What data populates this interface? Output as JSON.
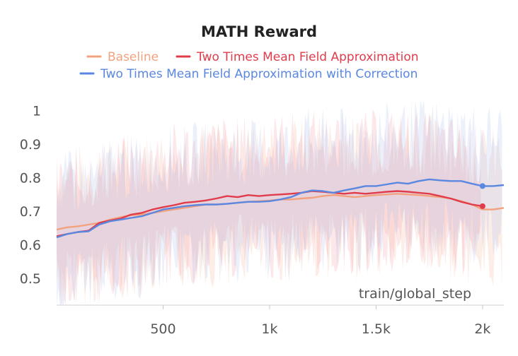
{
  "chart_data": {
    "type": "line",
    "title": "MATH Reward",
    "xlabel": "train/global_step",
    "ylabel": "",
    "xlim": [
      0,
      2100
    ],
    "ylim": [
      0.42,
      1.06
    ],
    "x_ticks": [
      500,
      1000,
      1500,
      2000
    ],
    "x_tick_labels": [
      "500",
      "1k",
      "1.5k",
      "2k"
    ],
    "y_ticks": [
      0.5,
      0.6,
      0.7,
      0.8,
      0.9,
      1.0
    ],
    "y_tick_labels": [
      "0.5",
      "0.6",
      "0.7",
      "0.8",
      "0.9",
      "1"
    ],
    "legend_position": "top-center",
    "grid": false,
    "series": [
      {
        "name": "Baseline",
        "color": "#F2A27E",
        "band_color": "#F5B8A0",
        "x": [
          0,
          50,
          100,
          150,
          200,
          250,
          300,
          350,
          400,
          450,
          500,
          550,
          600,
          650,
          700,
          750,
          800,
          850,
          900,
          950,
          1000,
          1050,
          1100,
          1150,
          1200,
          1250,
          1300,
          1350,
          1400,
          1450,
          1500,
          1550,
          1600,
          1650,
          1700,
          1750,
          1800,
          1850,
          1900,
          1950,
          2000,
          2050,
          2100
        ],
        "values": [
          0.645,
          0.652,
          0.655,
          0.66,
          0.665,
          0.675,
          0.682,
          0.688,
          0.69,
          0.695,
          0.7,
          0.705,
          0.71,
          0.715,
          0.72,
          0.72,
          0.722,
          0.725,
          0.728,
          0.73,
          0.732,
          0.735,
          0.735,
          0.738,
          0.74,
          0.745,
          0.748,
          0.745,
          0.742,
          0.745,
          0.748,
          0.75,
          0.752,
          0.75,
          0.748,
          0.745,
          0.742,
          0.738,
          0.73,
          0.72,
          0.705,
          0.705,
          0.71
        ]
      },
      {
        "name": "Two Times Mean Field Approximation",
        "color": "#E03C4B",
        "band_color": "#F2A0A8",
        "x": [
          0,
          50,
          100,
          150,
          200,
          250,
          300,
          350,
          400,
          450,
          500,
          550,
          600,
          650,
          700,
          750,
          800,
          850,
          900,
          950,
          1000,
          1050,
          1100,
          1150,
          1200,
          1250,
          1300,
          1350,
          1400,
          1450,
          1500,
          1550,
          1600,
          1650,
          1700,
          1750,
          1800,
          1850,
          1900,
          1950,
          2000
        ],
        "values": [
          0.625,
          0.632,
          0.638,
          0.642,
          0.665,
          0.672,
          0.678,
          0.69,
          0.695,
          0.705,
          0.712,
          0.718,
          0.725,
          0.728,
          0.732,
          0.738,
          0.745,
          0.742,
          0.748,
          0.745,
          0.748,
          0.75,
          0.752,
          0.755,
          0.76,
          0.758,
          0.755,
          0.752,
          0.755,
          0.752,
          0.755,
          0.758,
          0.76,
          0.758,
          0.755,
          0.752,
          0.745,
          0.738,
          0.728,
          0.72,
          0.715
        ]
      },
      {
        "name": "Two Times Mean Field Approximation with Correction",
        "color": "#5A87E0",
        "band_color": "#AFC5F0",
        "x": [
          0,
          50,
          100,
          150,
          200,
          250,
          300,
          350,
          400,
          450,
          500,
          550,
          600,
          650,
          700,
          750,
          800,
          850,
          900,
          950,
          1000,
          1050,
          1100,
          1150,
          1200,
          1250,
          1300,
          1350,
          1400,
          1450,
          1500,
          1550,
          1600,
          1650,
          1700,
          1750,
          1800,
          1850,
          1900,
          1950,
          2000,
          2050,
          2100
        ],
        "values": [
          0.622,
          0.632,
          0.638,
          0.64,
          0.66,
          0.67,
          0.675,
          0.68,
          0.685,
          0.695,
          0.705,
          0.71,
          0.715,
          0.718,
          0.72,
          0.72,
          0.722,
          0.725,
          0.728,
          0.728,
          0.73,
          0.735,
          0.742,
          0.755,
          0.762,
          0.76,
          0.755,
          0.762,
          0.768,
          0.775,
          0.775,
          0.78,
          0.785,
          0.782,
          0.79,
          0.795,
          0.792,
          0.79,
          0.79,
          0.782,
          0.775,
          0.775,
          0.778
        ]
      }
    ]
  }
}
